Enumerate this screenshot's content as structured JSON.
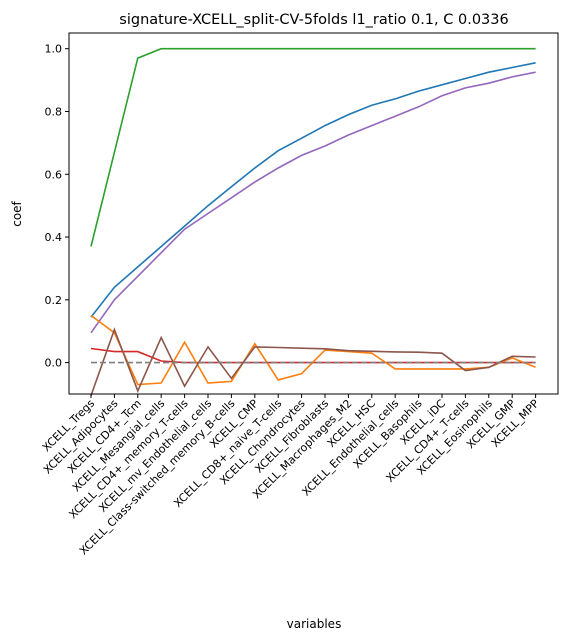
{
  "chart_data": {
    "type": "line",
    "title": "signature-XCELL_split-CV-5folds l1_ratio 0.1, C 0.0336",
    "xlabel": "variables",
    "ylabel": "coef",
    "ylim": [
      -0.1,
      1.05
    ],
    "yticks": [
      "0.0",
      "0.2",
      "0.4",
      "0.6",
      "0.8",
      "1.0"
    ],
    "grid": false,
    "legend": "none",
    "categories": [
      "XCELL_Tregs",
      "XCELL_Adipocytes",
      "XCELL_CD4+_Tcm",
      "XCELL_Mesangial_cells",
      "XCELL_CD4+_memory_T-cells",
      "XCELL_mv_Endothelial_cells",
      "XCELL_Class-switched_memory_B-cells",
      "XCELL_CMP",
      "XCELL_CD8+_naive_T-cells",
      "XCELL_Chondrocytes",
      "XCELL_Fibroblasts",
      "XCELL_Macrophages_M2",
      "XCELL_HSC",
      "XCELL_Endothelial_cells",
      "XCELL_Basophils",
      "XCELL_iDC",
      "XCELL_CD4+_T-cells",
      "XCELL_Eosinophils",
      "XCELL_GMP",
      "XCELL_MPP"
    ],
    "tick_labels": [
      "XCELL_Tregs",
      "XCELL_Adipocytes",
      "XCELL_CD4+_Tcm",
      "XCELL_Mesangial_cells",
      "XCELL_CD4+_memory_T-cells",
      "XCELL_mv_Endothelial_cells",
      "XCELL_Class-switched_memory_B-cells",
      "XCELL_CMP",
      "XCELL_CD8+_naive_T-cells",
      "XCELL_Chondrocytes",
      "XCELL_Fibroblasts",
      "XCELL_Macrophages_M2",
      "XCELL_HSC",
      "XCELL_Endothelial_cells",
      "XCELL_Basophils",
      "XCELL_iDC",
      "XCELL_CD4+_T-cells",
      "XCELL_Eosinophils",
      "XCELL_GMP",
      "XCELL_MPP"
    ],
    "series": [
      {
        "color": "#2ca02c",
        "values": [
          0.37,
          0.67,
          0.97,
          1.0,
          1.0,
          1.0,
          1.0,
          1.0,
          1.0,
          1.0,
          1.0,
          1.0,
          1.0,
          1.0,
          1.0,
          1.0,
          1.0,
          1.0,
          1.0,
          1.0
        ]
      },
      {
        "color": "#1f77b4",
        "values": [
          0.145,
          0.24,
          0.305,
          0.37,
          0.435,
          0.5,
          0.56,
          0.62,
          0.675,
          0.715,
          0.755,
          0.79,
          0.82,
          0.84,
          0.865,
          0.885,
          0.905,
          0.925,
          0.94,
          0.955
        ]
      },
      {
        "color": "#9467bd",
        "values": [
          0.095,
          0.2,
          0.275,
          0.35,
          0.425,
          0.475,
          0.525,
          0.575,
          0.62,
          0.66,
          0.69,
          0.725,
          0.755,
          0.785,
          0.815,
          0.85,
          0.875,
          0.89,
          0.91,
          0.925
        ]
      },
      {
        "color": "#d62728",
        "values": [
          0.045,
          0.035,
          0.035,
          0.005,
          0.0,
          0.0,
          0.0,
          0.0,
          0.0,
          0.0,
          0.0,
          0.0,
          0.0,
          0.0,
          0.0,
          0.0,
          0.0,
          0.0,
          0.0,
          0.0
        ]
      },
      {
        "color": "#ff7f0e",
        "values": [
          0.15,
          0.095,
          -0.07,
          -0.065,
          0.065,
          -0.065,
          -0.06,
          0.06,
          -0.055,
          -0.035,
          0.04,
          0.035,
          0.03,
          -0.02,
          -0.02,
          -0.02,
          -0.02,
          -0.015,
          0.015,
          -0.015
        ]
      },
      {
        "color": "#8c564b",
        "values": [
          -0.105,
          0.105,
          -0.09,
          0.08,
          -0.075,
          0.05,
          -0.05,
          0.05,
          0.048,
          0.046,
          0.044,
          0.038,
          0.036,
          0.034,
          0.033,
          0.03,
          -0.025,
          -0.015,
          0.02,
          0.018
        ]
      },
      {
        "color": "#7f7f7f",
        "dashed": true,
        "values": [
          0.0,
          0.0,
          0.0,
          0.0,
          0.0,
          0.0,
          0.0,
          0.0,
          0.0,
          0.0,
          0.0,
          0.0,
          0.0,
          0.0,
          0.0,
          0.0,
          0.0,
          0.0,
          0.0,
          0.0
        ]
      }
    ]
  }
}
